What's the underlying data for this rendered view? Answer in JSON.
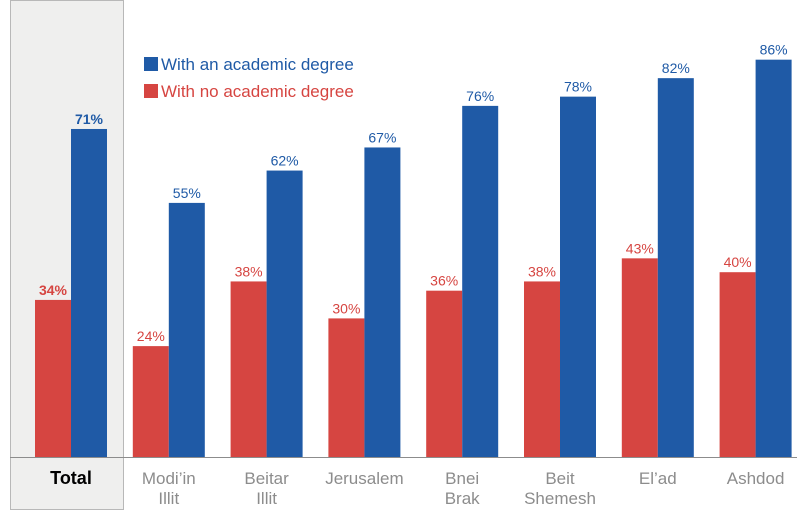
{
  "chart_data": {
    "type": "bar",
    "title": "",
    "xlabel": "",
    "ylabel": "",
    "ylim": [
      0,
      100
    ],
    "grid": false,
    "legend_position": "top-left",
    "categories": [
      [
        "Total"
      ],
      [
        "Modi’in",
        "Illit"
      ],
      [
        "Beitar",
        "Illit"
      ],
      [
        "Jerusalem"
      ],
      [
        "Bnei",
        "Brak"
      ],
      [
        "Beit",
        "Shemesh"
      ],
      [
        "El’ad"
      ],
      [
        "Ashdod"
      ]
    ],
    "highlighted_category": "Total",
    "series": [
      {
        "name": "With no academic degree",
        "color": "#d64541",
        "values": [
          34,
          24,
          38,
          30,
          36,
          38,
          43,
          40
        ],
        "labels": [
          "34%",
          "24%",
          "38%",
          "30%",
          "36%",
          "38%",
          "43%",
          "40%"
        ]
      },
      {
        "name": "With an academic degree",
        "color": "#1f5aa6",
        "values": [
          71,
          55,
          62,
          67,
          76,
          78,
          82,
          86
        ],
        "labels": [
          "71%",
          "55%",
          "62%",
          "67%",
          "76%",
          "78%",
          "82%",
          "86%"
        ]
      }
    ],
    "legend_order": [
      1,
      0
    ],
    "colors": {
      "highlight_fill": "#efefee",
      "highlight_border": "#b8b8b8",
      "axis": "#8c8c8c",
      "category_text": "#8c8c8c",
      "highlight_text": "#000000"
    }
  }
}
